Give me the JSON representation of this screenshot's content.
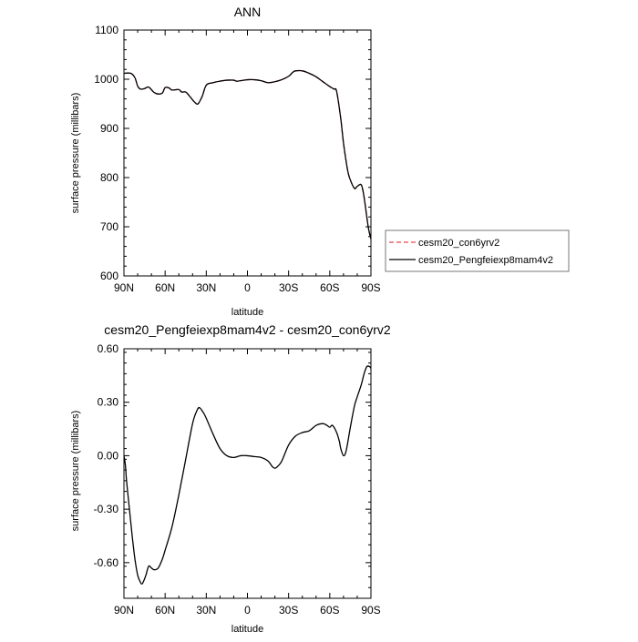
{
  "chart_data": [
    {
      "type": "line",
      "title": "ANN",
      "xlabel": "latitude",
      "ylabel": "surface pressure (millibars)",
      "xlim": [
        90,
        -90
      ],
      "ylim": [
        600,
        1100
      ],
      "xticks": [
        {
          "v": 90,
          "label": "90N"
        },
        {
          "v": 60,
          "label": "60N"
        },
        {
          "v": 30,
          "label": "30N"
        },
        {
          "v": 0,
          "label": "0"
        },
        {
          "v": -30,
          "label": "30S"
        },
        {
          "v": -60,
          "label": "60S"
        },
        {
          "v": -90,
          "label": "90S"
        }
      ],
      "yticks": [
        {
          "v": 600,
          "label": "600"
        },
        {
          "v": 700,
          "label": "700"
        },
        {
          "v": 800,
          "label": "800"
        },
        {
          "v": 900,
          "label": "900"
        },
        {
          "v": 1000,
          "label": "1000"
        },
        {
          "v": 1100,
          "label": "1100"
        }
      ],
      "grid": false,
      "legend_position": "right",
      "x": [
        90,
        85,
        82,
        80,
        78,
        75,
        72,
        68,
        65,
        62,
        60,
        57,
        55,
        50,
        48,
        45,
        42,
        40,
        38,
        36,
        33,
        30,
        25,
        20,
        15,
        10,
        8,
        5,
        0,
        -5,
        -10,
        -15,
        -20,
        -25,
        -30,
        -33,
        -35,
        -40,
        -45,
        -50,
        -55,
        -60,
        -63,
        -65,
        -68,
        -70,
        -73,
        -75,
        -78,
        -80,
        -83,
        -85,
        -88,
        -90
      ],
      "series": [
        {
          "name": "cesm20_con6yrv2",
          "color": "#e8474d",
          "dash": "dashed",
          "values": [
            1012,
            1012,
            1003,
            986,
            980,
            981,
            984,
            973,
            970,
            972,
            983,
            982,
            978,
            979,
            974,
            974,
            965,
            958,
            952,
            950,
            965,
            988,
            993,
            996,
            998,
            998,
            996,
            997,
            999,
            999,
            997,
            993,
            995,
            999,
            1006,
            1014,
            1017,
            1017,
            1012,
            1005,
            995,
            985,
            980,
            975,
            920,
            870,
            815,
            795,
            778,
            782,
            785,
            760,
            700,
            675
          ]
        },
        {
          "name": "cesm20_Pengfeiexp8mam4v2",
          "color": "#000000",
          "dash": "solid",
          "values": [
            1012,
            1012,
            1003,
            986,
            980,
            981,
            984,
            973,
            970,
            972,
            983,
            982,
            978,
            979,
            974,
            974,
            965,
            958,
            952,
            950,
            965,
            988,
            993,
            996,
            998,
            998,
            996,
            997,
            999,
            999,
            997,
            993,
            995,
            999,
            1006,
            1014,
            1017,
            1017,
            1012,
            1005,
            995,
            985,
            980,
            975,
            920,
            870,
            815,
            795,
            778,
            782,
            785,
            760,
            700,
            675
          ]
        }
      ]
    },
    {
      "type": "line",
      "title": "cesm20_Pengfeiexp8mam4v2 - cesm20_con6yrv2",
      "xlabel": "latitude",
      "ylabel": "surface pressure (millibars)",
      "xlim": [
        90,
        -90
      ],
      "ylim": [
        -0.8,
        0.6
      ],
      "xticks": [
        {
          "v": 90,
          "label": "90N"
        },
        {
          "v": 60,
          "label": "60N"
        },
        {
          "v": 30,
          "label": "30N"
        },
        {
          "v": 0,
          "label": "0"
        },
        {
          "v": -30,
          "label": "30S"
        },
        {
          "v": -60,
          "label": "60S"
        },
        {
          "v": -90,
          "label": "90S"
        }
      ],
      "yticks": [
        {
          "v": 0.6,
          "label": "0.60"
        },
        {
          "v": 0.3,
          "label": "0.30"
        },
        {
          "v": 0.0,
          "label": "0.00"
        },
        {
          "v": -0.3,
          "label": "-0.30"
        },
        {
          "v": -0.6,
          "label": "-0.60"
        }
      ],
      "grid": false,
      "x": [
        90,
        89,
        88,
        86,
        84,
        82,
        80,
        78,
        77,
        76,
        74,
        72,
        70,
        68,
        65,
        62,
        60,
        55,
        50,
        45,
        40,
        37,
        35,
        32,
        30,
        25,
        20,
        15,
        10,
        5,
        0,
        -5,
        -10,
        -15,
        -18,
        -20,
        -22,
        -25,
        -30,
        -35,
        -40,
        -45,
        -50,
        -55,
        -58,
        -60,
        -62,
        -65,
        -67,
        -68,
        -70,
        -72,
        -75,
        -78,
        -80,
        -83,
        -85,
        -87,
        -89,
        -90
      ],
      "series": [
        {
          "name": "",
          "color": "#000000",
          "dash": "solid",
          "values": [
            0.0,
            -0.05,
            -0.15,
            -0.3,
            -0.45,
            -0.58,
            -0.67,
            -0.71,
            -0.72,
            -0.71,
            -0.67,
            -0.62,
            -0.63,
            -0.64,
            -0.63,
            -0.58,
            -0.53,
            -0.4,
            -0.22,
            -0.02,
            0.18,
            0.25,
            0.27,
            0.24,
            0.21,
            0.12,
            0.04,
            0.0,
            -0.01,
            0.0,
            0.0,
            -0.005,
            -0.01,
            -0.03,
            -0.06,
            -0.07,
            -0.06,
            -0.03,
            0.06,
            0.11,
            0.13,
            0.14,
            0.17,
            0.18,
            0.17,
            0.16,
            0.17,
            0.13,
            0.08,
            0.04,
            0.0,
            0.03,
            0.16,
            0.28,
            0.33,
            0.4,
            0.46,
            0.5,
            0.5,
            0.49
          ]
        }
      ]
    }
  ]
}
